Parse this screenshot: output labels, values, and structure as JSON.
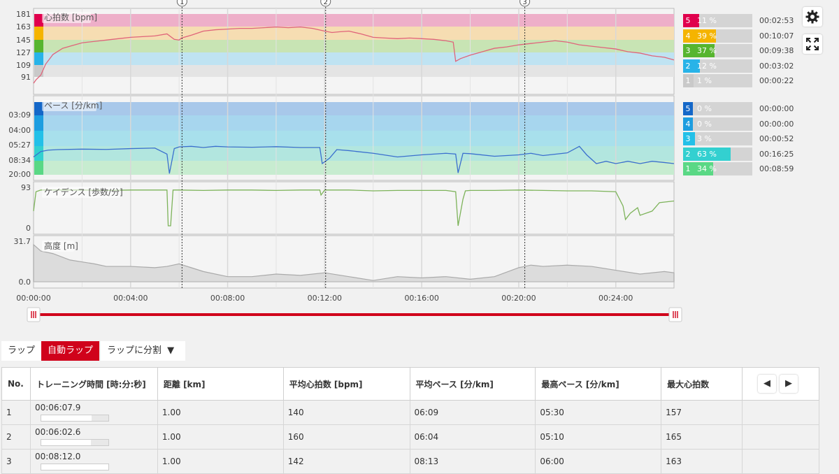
{
  "charts": {
    "heart_rate": {
      "label": "心拍数 [bpm]",
      "ticks": [
        "181",
        "163",
        "145",
        "127",
        "109",
        "91"
      ],
      "zones": [
        {
          "n": "5",
          "pct": "11 %",
          "frac": 0.11,
          "time": "00:02:53",
          "color": "#e0004d"
        },
        {
          "n": "4",
          "pct": "39 %",
          "frac": 0.39,
          "time": "00:10:07",
          "color": "#f5b400"
        },
        {
          "n": "3",
          "pct": "37 %",
          "frac": 0.37,
          "time": "00:09:38",
          "color": "#57b52f"
        },
        {
          "n": "2",
          "pct": "12 %",
          "frac": 0.12,
          "time": "00:03:02",
          "color": "#28b3e8"
        },
        {
          "n": "1",
          "pct": "1 %",
          "frac": 0.01,
          "time": "00:00:22",
          "color": "#c9c9c9"
        }
      ],
      "zone_band_colors": [
        "#eeafc9",
        "#f6ddb2",
        "#c8e4b4",
        "#bfe3f2",
        "#e4e4e4"
      ]
    },
    "pace": {
      "label": "ペース [分/km]",
      "ticks": [
        "03:09",
        "04:00",
        "05:27",
        "08:34",
        "20:00"
      ],
      "zones": [
        {
          "n": "5",
          "pct": "0 %",
          "frac": 0.0,
          "time": "00:00:00",
          "color": "#1467c8"
        },
        {
          "n": "4",
          "pct": "0 %",
          "frac": 0.0,
          "time": "00:00:00",
          "color": "#1d9de0"
        },
        {
          "n": "3",
          "pct": "3 %",
          "frac": 0.03,
          "time": "00:00:52",
          "color": "#23c0e8"
        },
        {
          "n": "2",
          "pct": "63 %",
          "frac": 0.63,
          "time": "00:16:25",
          "color": "#33d0d0"
        },
        {
          "n": "1",
          "pct": "34 %",
          "frac": 0.34,
          "time": "00:08:59",
          "color": "#5ad885"
        }
      ],
      "zone_band_colors": [
        "#a8c8ea",
        "#a7d6ee",
        "#a8e0ec",
        "#b2e6df",
        "#c7ecd0"
      ]
    },
    "cadence": {
      "label": "ケイデンス [歩数/分]",
      "ticks": [
        "93",
        "0"
      ]
    },
    "altitude": {
      "label": "高度 [m]",
      "ticks": [
        "31.7",
        "0.0"
      ]
    },
    "x_axis_ticks": [
      "00:00:00",
      "00:04:00",
      "00:08:00",
      "00:12:00",
      "00:16:00",
      "00:20:00",
      "00:24:00"
    ],
    "lap_markers": [
      "1",
      "2",
      "3"
    ]
  },
  "chart_data": [
    {
      "type": "line",
      "title": "心拍数 [bpm]",
      "ylim": [
        73,
        181
      ],
      "x_unit": "minutes",
      "xlim": [
        0,
        26.4
      ],
      "series": [
        {
          "name": "心拍数 [bpm]",
          "color": "#e0647a",
          "x": [
            0,
            0.1,
            0.3,
            0.5,
            0.8,
            1.2,
            1.6,
            2.0,
            2.5,
            3.0,
            3.5,
            4.0,
            4.5,
            5.0,
            5.5,
            5.8,
            6.0,
            6.1,
            6.5,
            7.0,
            7.5,
            8.0,
            8.5,
            9.0,
            9.5,
            10.0,
            10.5,
            11.0,
            11.5,
            12.0,
            12.3,
            12.6,
            13.0,
            13.5,
            14.0,
            14.5,
            15.0,
            15.5,
            16.0,
            16.5,
            17.0,
            17.3,
            17.4,
            17.6,
            18.0,
            18.5,
            19.0,
            19.5,
            20.0,
            20.5,
            21.0,
            21.5,
            22.0,
            22.5,
            23.0,
            23.5,
            24.0,
            24.5,
            25.0,
            25.5,
            26.0,
            26.4
          ],
          "y": [
            80,
            85,
            92,
            108,
            122,
            131,
            135,
            139,
            141,
            143,
            145,
            147,
            148,
            149,
            152,
            144,
            143,
            146,
            150,
            156,
            158,
            159,
            160,
            160,
            161,
            162,
            161,
            162,
            160,
            156,
            154,
            155,
            156,
            152,
            147,
            146,
            145,
            146,
            145,
            144,
            142,
            140,
            112,
            116,
            121,
            126,
            131,
            133,
            136,
            138,
            140,
            142,
            140,
            136,
            134,
            132,
            130,
            126,
            124,
            120,
            118,
            114
          ]
        }
      ]
    },
    {
      "type": "line",
      "title": "ペース [分/km]",
      "y_ticks": [
        "03:09",
        "04:00",
        "05:27",
        "08:34",
        "20:00"
      ],
      "x_unit": "minutes",
      "xlim": [
        0,
        26.4
      ],
      "series": [
        {
          "name": "ペース [分/km]",
          "color": "#3a6fcf",
          "x": [
            0,
            0.3,
            0.6,
            1.0,
            2.0,
            3.0,
            4.0,
            5.0,
            5.5,
            5.6,
            5.8,
            6.0,
            6.5,
            7.0,
            7.5,
            8.0,
            9.0,
            10.0,
            11.0,
            11.8,
            11.9,
            12.2,
            12.5,
            13.0,
            14.0,
            15.0,
            16.0,
            17.0,
            17.4,
            17.5,
            17.7,
            18.0,
            19.0,
            20.0,
            20.5,
            21.0,
            22.0,
            22.5,
            22.8,
            23.2,
            23.6,
            24.0,
            24.5,
            25.0,
            25.5,
            26.0,
            26.4
          ],
          "y": [
            "07:40",
            "06:30",
            "06:15",
            "06:10",
            "06:05",
            "06:08",
            "06:00",
            "05:55",
            "07:00",
            "19:00",
            "06:00",
            "05:45",
            "05:40",
            "05:50",
            "05:40",
            "05:45",
            "05:48",
            "05:43",
            "05:50",
            "05:50",
            "10:00",
            "08:00",
            "06:10",
            "06:20",
            "06:50",
            "07:40",
            "07:10",
            "06:50",
            "07:00",
            "18:00",
            "06:50",
            "06:55",
            "07:30",
            "07:10",
            "06:50",
            "07:20",
            "06:45",
            "05:40",
            "07:10",
            "10:00",
            "09:00",
            "10:00",
            "09:00",
            "10:00",
            "09:00",
            "09:30",
            "10:00"
          ]
        }
      ]
    },
    {
      "type": "line",
      "title": "ケイデンス [歩数/分]",
      "ylim": [
        0,
        93
      ],
      "x_unit": "minutes",
      "xlim": [
        0,
        26.4
      ],
      "series": [
        {
          "name": "ケイデンス [歩数/分]",
          "color": "#7db35a",
          "x": [
            0,
            0.1,
            0.3,
            1.0,
            2.0,
            3.0,
            4.0,
            5.5,
            5.55,
            5.65,
            5.75,
            6.0,
            7.0,
            8.0,
            9.0,
            10.0,
            11.0,
            11.8,
            11.85,
            12.0,
            13.0,
            14.0,
            15.0,
            16.0,
            17.0,
            17.4,
            17.5,
            17.7,
            17.8,
            18.0,
            19.0,
            20.0,
            21.0,
            22.0,
            23.0,
            24.0,
            24.3,
            24.4,
            24.6,
            24.9,
            25.0,
            25.5,
            25.8,
            26.4
          ],
          "y": [
            40,
            86,
            90,
            90,
            90,
            89,
            90,
            90,
            5,
            5,
            90,
            90,
            89,
            90,
            90,
            89,
            90,
            90,
            78,
            90,
            90,
            88,
            89,
            89,
            89,
            86,
            5,
            68,
            88,
            89,
            89,
            90,
            89,
            88,
            88,
            86,
            52,
            20,
            35,
            48,
            30,
            40,
            60,
            64
          ]
        }
      ]
    },
    {
      "type": "area",
      "title": "高度 [m]",
      "ylim": [
        0,
        31.7
      ],
      "x_unit": "minutes",
      "xlim": [
        0,
        26.4
      ],
      "series": [
        {
          "name": "高度 [m]",
          "color": "#aaaaaa",
          "x": [
            0,
            0.3,
            0.8,
            1.5,
            2.5,
            3.0,
            4.0,
            5.0,
            5.5,
            6.0,
            6.5,
            7.0,
            8.0,
            9.0,
            10.0,
            11.0,
            12.0,
            13.0,
            14.0,
            15.0,
            16.0,
            17.0,
            18.0,
            19.0,
            20.0,
            20.5,
            21.0,
            22.0,
            23.0,
            24.0,
            25.0,
            26.0,
            26.4
          ],
          "y": [
            29,
            24,
            22,
            17,
            14,
            12,
            12,
            11,
            12,
            14,
            11,
            8,
            4,
            4,
            6,
            5,
            7,
            4,
            1,
            4,
            3,
            4,
            2,
            4,
            11,
            13,
            12,
            13,
            12,
            9,
            6,
            8,
            7
          ]
        }
      ]
    }
  ],
  "toolbar": {
    "settings_icon": "gear-icon",
    "fullscreen_icon": "expand-icon"
  },
  "tabs": [
    {
      "label": "ラップ",
      "active": false
    },
    {
      "label": "自動ラップ",
      "active": true
    },
    {
      "label": "ラップに分割",
      "active": false
    }
  ],
  "tab_dropdown_glyph": "▼",
  "table": {
    "headers": [
      "No.",
      "トレーニング時間 [時:分:秒]",
      "距離 [km]",
      "平均心拍数 [bpm]",
      "平均ペース [分/km]",
      "最高ペース [分/km]",
      "最大心拍数"
    ],
    "nav_prev": "◀",
    "nav_next": "▶",
    "rows": [
      {
        "no": "1",
        "time": "00:06:07.9",
        "time_frac": 0.75,
        "distance": "1.00",
        "avg_hr": "140",
        "avg_pace": "06:09",
        "max_pace": "05:30",
        "max_hr": "157"
      },
      {
        "no": "2",
        "time": "00:06:02.6",
        "time_frac": 0.74,
        "distance": "1.00",
        "avg_hr": "160",
        "avg_pace": "06:04",
        "max_pace": "05:10",
        "max_hr": "165"
      },
      {
        "no": "3",
        "time": "00:08:12.0",
        "time_frac": 1.0,
        "distance": "1.00",
        "avg_hr": "142",
        "avg_pace": "08:13",
        "max_pace": "06:00",
        "max_hr": "163"
      }
    ]
  }
}
